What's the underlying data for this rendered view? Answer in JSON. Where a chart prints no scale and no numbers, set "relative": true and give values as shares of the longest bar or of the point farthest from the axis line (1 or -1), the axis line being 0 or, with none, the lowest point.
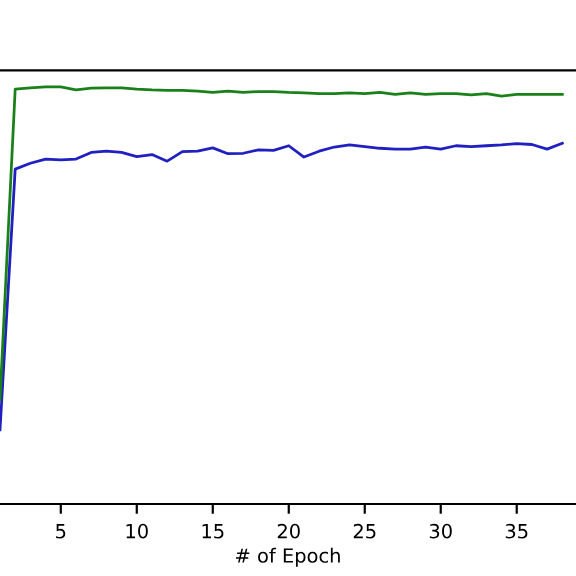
{
  "chart_data": {
    "type": "line",
    "relative": true,
    "xlabel": "# of Epoch",
    "x": [
      1,
      2,
      3,
      4,
      5,
      6,
      7,
      8,
      9,
      10,
      11,
      12,
      13,
      14,
      15,
      16,
      17,
      18,
      19,
      20,
      21,
      22,
      23,
      24,
      25,
      26,
      27,
      28,
      29,
      30,
      31,
      32,
      33,
      34,
      35,
      36,
      37,
      38
    ],
    "xlim": [
      1.0,
      38.9
    ],
    "xticks": [
      5,
      10,
      15,
      20,
      25,
      30,
      35
    ],
    "series": [
      {
        "color": "#2020c0",
        "values": [
          0.178,
          0.803,
          0.817,
          0.827,
          0.825,
          0.827,
          0.843,
          0.846,
          0.843,
          0.833,
          0.838,
          0.822,
          0.845,
          0.846,
          0.854,
          0.84,
          0.841,
          0.849,
          0.848,
          0.859,
          0.832,
          0.846,
          0.856,
          0.861,
          0.857,
          0.853,
          0.851,
          0.851,
          0.856,
          0.851,
          0.859,
          0.857,
          0.859,
          0.861,
          0.864,
          0.862,
          0.851,
          0.865
        ]
      },
      {
        "color": "#1a801a",
        "values": [
          0.25,
          0.995,
          0.998,
          1.0,
          1.0,
          0.993,
          0.997,
          0.998,
          0.998,
          0.995,
          0.993,
          0.992,
          0.992,
          0.99,
          0.987,
          0.99,
          0.987,
          0.989,
          0.989,
          0.987,
          0.986,
          0.984,
          0.984,
          0.986,
          0.984,
          0.987,
          0.982,
          0.986,
          0.982,
          0.984,
          0.984,
          0.981,
          0.984,
          0.978,
          0.982,
          0.982,
          0.982,
          0.982
        ]
      }
    ],
    "grid": false
  }
}
